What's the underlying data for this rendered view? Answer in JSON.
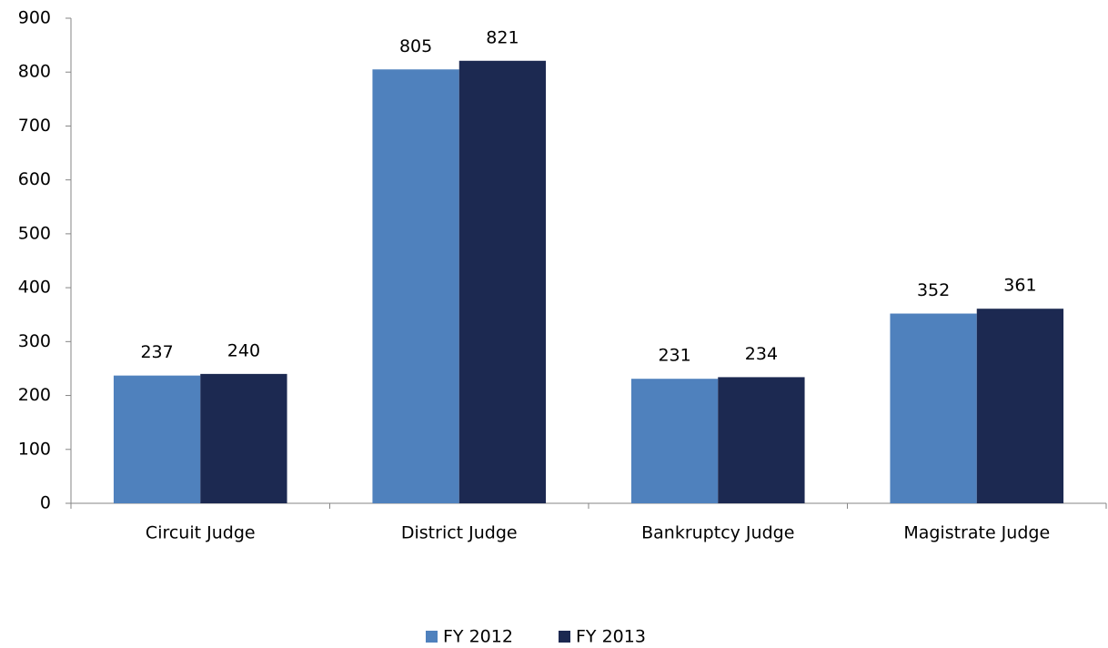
{
  "chart_data": {
    "type": "bar",
    "categories": [
      "Circuit Judge",
      "District Judge",
      "Bankruptcy Judge",
      "Magistrate Judge"
    ],
    "series": [
      {
        "name": "FY 2012",
        "color": "#4f81bd",
        "values": [
          237,
          805,
          231,
          352
        ]
      },
      {
        "name": "FY 2013",
        "color": "#1c2951",
        "values": [
          240,
          821,
          234,
          361
        ]
      }
    ],
    "ylim": [
      0,
      900
    ],
    "yticks": [
      0,
      100,
      200,
      300,
      400,
      500,
      600,
      700,
      800,
      900
    ],
    "grid": false,
    "legend": "bottom",
    "data_labels": true
  }
}
